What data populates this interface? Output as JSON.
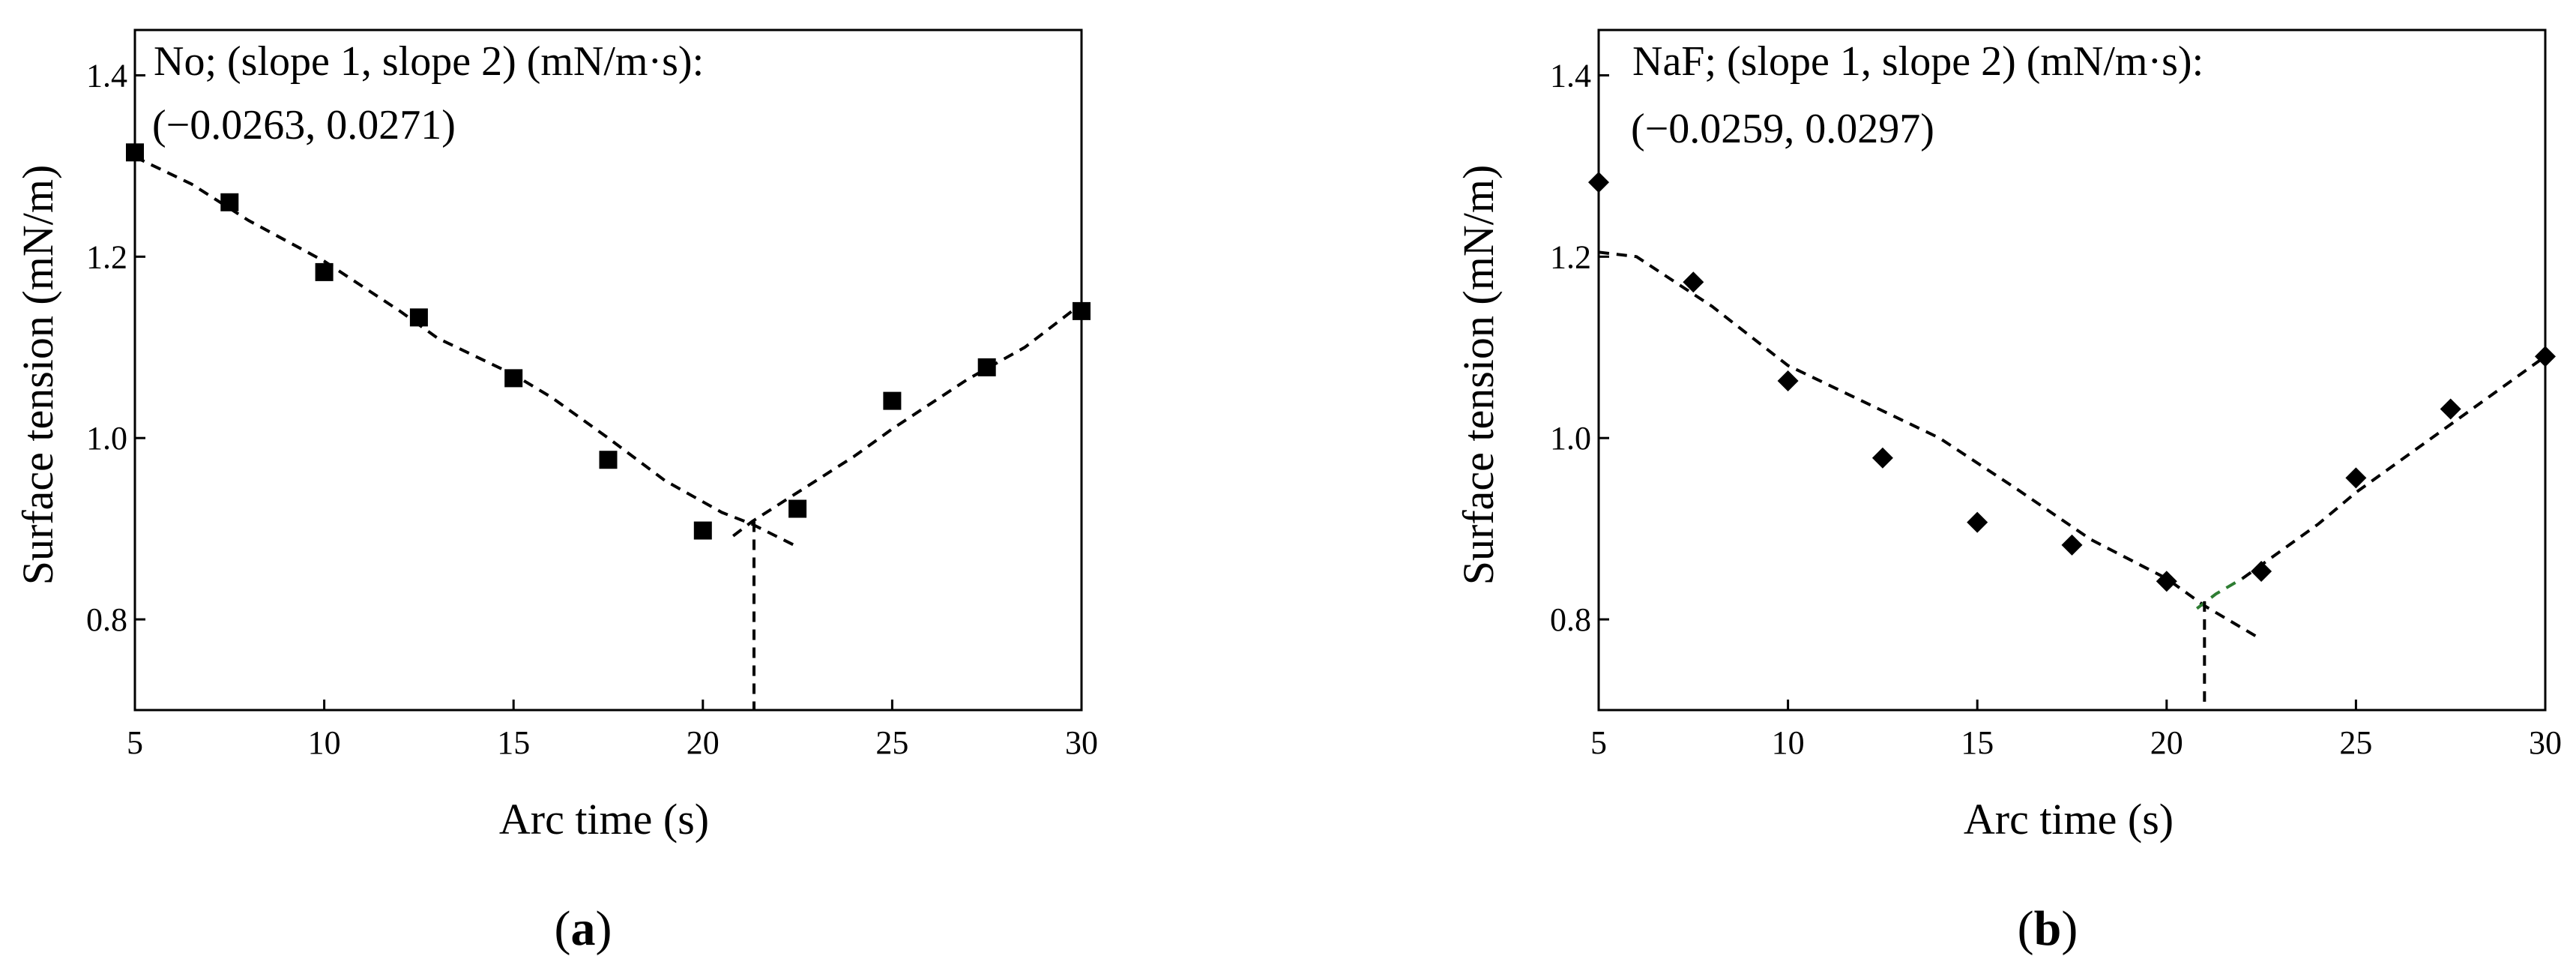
{
  "chart_data": [
    {
      "type": "scatter",
      "panel_label": "a",
      "xlabel": "Arc time (s)",
      "ylabel": "Surface tension (mN/m)",
      "xlim": [
        5,
        30
      ],
      "ylim": [
        0.7,
        1.45
      ],
      "xticks": [
        5,
        10,
        15,
        20,
        25,
        30
      ],
      "yticks": [
        0.8,
        1.0,
        1.2,
        1.4
      ],
      "xtick_labels": [
        "5",
        "10",
        "15",
        "20",
        "25",
        "30"
      ],
      "ytick_labels": [
        "0.8",
        "1.0",
        "1.2",
        "1.4"
      ],
      "annotation": [
        "No; (slope 1, slope 2) (mN/m·s):",
        "(−0.0263, 0.0271)"
      ],
      "marker": "square",
      "points": {
        "x": [
          5,
          7.5,
          10,
          12.5,
          15,
          17.5,
          20,
          22.5,
          25,
          27.5,
          30
        ],
        "y": [
          1.315,
          1.26,
          1.183,
          1.133,
          1.066,
          0.976,
          0.898,
          0.922,
          1.041,
          1.078,
          1.14
        ]
      },
      "fit_lines": [
        {
          "color": "#000000",
          "x": [
            5,
            6.5,
            8,
            10,
            12,
            13,
            15,
            16,
            17.5,
            19,
            20.5,
            21.3,
            22.5
          ],
          "y": [
            1.31,
            1.28,
            1.24,
            1.195,
            1.14,
            1.11,
            1.07,
            1.045,
            1.0,
            0.953,
            0.918,
            0.905,
            0.88
          ]
        },
        {
          "color": "#000000",
          "x": [
            20.8,
            21.3,
            22.5,
            24,
            25,
            27,
            28.5,
            30
          ],
          "y": [
            0.892,
            0.908,
            0.94,
            0.98,
            1.01,
            1.065,
            1.1,
            1.148
          ]
        }
      ],
      "intersection": {
        "x": 21.35,
        "y": 0.908
      }
    },
    {
      "type": "scatter",
      "panel_label": "b",
      "xlabel": "Arc time (s)",
      "ylabel": "Surface tension (mN/m)",
      "xlim": [
        5,
        30
      ],
      "ylim": [
        0.7,
        1.45
      ],
      "xticks": [
        5,
        10,
        15,
        20,
        25,
        30
      ],
      "yticks": [
        0.8,
        1.0,
        1.2,
        1.4
      ],
      "xtick_labels": [
        "5",
        "10",
        "15",
        "20",
        "25",
        "30"
      ],
      "ytick_labels": [
        "0.8",
        "1.0",
        "1.2",
        "1.4"
      ],
      "annotation": [
        "NaF; (slope 1, slope 2) (mN/m·s):",
        "(−0.0259, 0.0297)"
      ],
      "marker": "diamond",
      "points": {
        "x": [
          5,
          7.5,
          10,
          12.5,
          15,
          17.5,
          20,
          22.5,
          25,
          27.5,
          30
        ],
        "y": [
          1.282,
          1.172,
          1.063,
          0.978,
          0.907,
          0.882,
          0.842,
          0.853,
          0.956,
          1.032,
          1.09
        ]
      },
      "fit_lines": [
        {
          "color": "#000000",
          "x": [
            5,
            6,
            8,
            10,
            12,
            14,
            16,
            18,
            20,
            21,
            22.5
          ],
          "y": [
            1.205,
            1.2,
            1.145,
            1.08,
            1.04,
            1.0,
            0.945,
            0.888,
            0.845,
            0.815,
            0.778
          ]
        },
        {
          "color": "#2e7d32",
          "x": [
            20.8,
            21.3,
            22
          ],
          "y": [
            0.812,
            0.828,
            0.845
          ]
        },
        {
          "color": "#000000",
          "x": [
            22,
            22.5,
            24,
            25,
            27,
            28.5,
            30
          ],
          "y": [
            0.845,
            0.86,
            0.905,
            0.94,
            1.0,
            1.045,
            1.09
          ]
        }
      ],
      "intersection": {
        "x": 21.0,
        "y": 0.82
      }
    }
  ]
}
